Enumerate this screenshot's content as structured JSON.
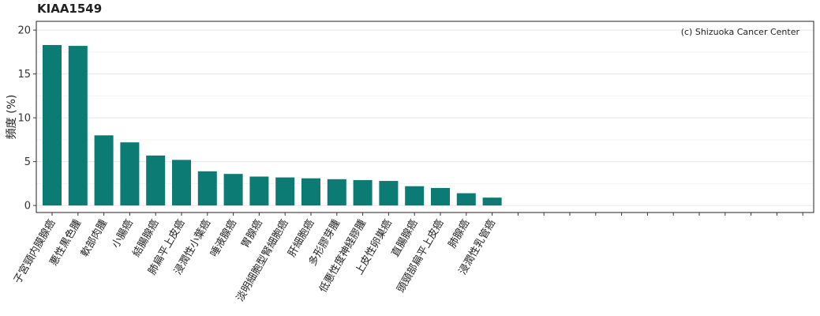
{
  "chart_data": {
    "type": "bar",
    "title": "KIAA1549",
    "xlabel": "",
    "ylabel": "頻度 (%)",
    "ylim": [
      -0.8,
      21.0
    ],
    "yticks": [
      0,
      5,
      10,
      15,
      20
    ],
    "grid": true,
    "annotation": "(c) Shizuoka Cancer Center",
    "bar_color": "#0b7b73",
    "slot_count": 30,
    "categories": [
      "子宮頸内膜腺癌",
      "悪性黒色腫",
      "軟部肉腫",
      "小腸癌",
      "結腸腺癌",
      "肺扁平上皮癌",
      "浸潤性小葉癌",
      "唾液腺癌",
      "胃腺癌",
      "淡明細胞型腎細胞癌",
      "肝細胞癌",
      "多形膠芽腫",
      "低悪性度神経膠腫",
      "上皮性卵巣癌",
      "直腸腺癌",
      "頭頸部扁平上皮癌",
      "肺腺癌",
      "浸潤性乳管癌"
    ],
    "values": [
      18.3,
      18.2,
      8.0,
      7.2,
      5.7,
      5.2,
      3.9,
      3.6,
      3.3,
      3.2,
      3.1,
      3.0,
      2.9,
      2.8,
      2.2,
      2.0,
      1.4,
      0.9
    ]
  }
}
